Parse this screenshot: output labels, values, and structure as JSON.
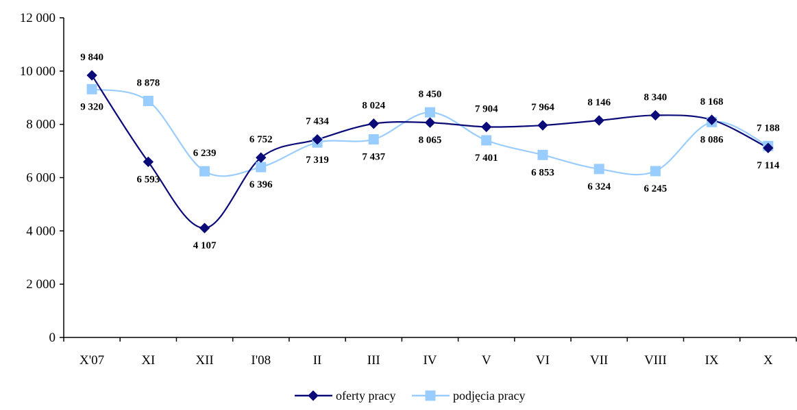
{
  "chart_data": {
    "type": "line",
    "categories": [
      "X'07",
      "XI",
      "XII",
      "I'08",
      "II",
      "III",
      "IV",
      "V",
      "VI",
      "VII",
      "VIII",
      "IX",
      "X"
    ],
    "ylim": [
      0,
      12000
    ],
    "yticks": [
      0,
      2000,
      4000,
      6000,
      8000,
      10000,
      12000
    ],
    "ytick_labels": [
      "0",
      "2 000",
      "4 000",
      "6 000",
      "8 000",
      "10 000",
      "12 000"
    ],
    "legend_position": "bottom",
    "grid": false,
    "series": [
      {
        "name": "oferty pracy",
        "color": "#0a0a78",
        "marker": "diamond",
        "values": [
          9840,
          6593,
          4107,
          6752,
          7434,
          8024,
          8065,
          7904,
          7964,
          8146,
          8340,
          8168,
          7114
        ],
        "labels": [
          "9 840",
          "6 593",
          "4 107",
          "6 752",
          "7 434",
          "8 024",
          "8 065",
          "7 904",
          "7 964",
          "8 146",
          "8 340",
          "8 168",
          "7 114"
        ]
      },
      {
        "name": "podjęcia pracy",
        "color": "#99ccff",
        "marker": "square",
        "values": [
          9320,
          8878,
          6239,
          6396,
          7319,
          7437,
          8450,
          7401,
          6853,
          6324,
          6245,
          8086,
          7188
        ],
        "labels": [
          "9 320",
          "8 878",
          "6 239",
          "6 396",
          "7 319",
          "7 437",
          "8 450",
          "7 401",
          "6 853",
          "6 324",
          "6 245",
          "8 086",
          "7 188"
        ]
      }
    ]
  }
}
